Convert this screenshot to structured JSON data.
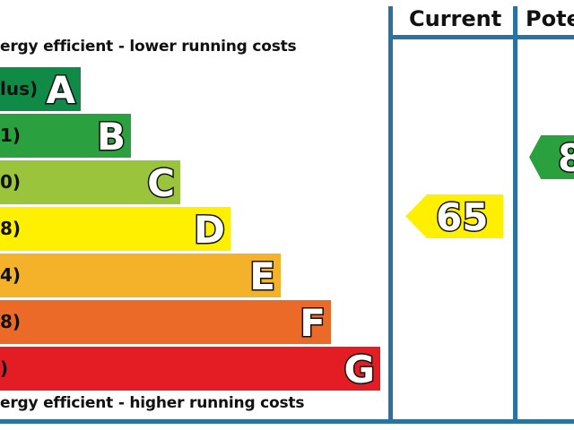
{
  "chart_data": {
    "type": "bar",
    "top_caption": "ergy efficient - lower running costs",
    "bottom_caption": "ergy efficient - higher running costs",
    "categories": [
      "A",
      "B",
      "C",
      "D",
      "E",
      "F",
      "G"
    ],
    "band_ranges": [
      "lus)",
      "1)",
      "0)",
      "8)",
      "4)",
      "8)",
      ")"
    ],
    "band_colors": [
      "#0f8a47",
      "#2aa13e",
      "#9ac43c",
      "#fff000",
      "#f4b12a",
      "#ec6a28",
      "#e31d23"
    ],
    "columns": [
      {
        "title": "Current",
        "value": "65",
        "band": "D",
        "color": "#fff000"
      },
      {
        "title": "Pote",
        "value": "8",
        "band": "B",
        "color": "#2aa13e"
      }
    ]
  }
}
